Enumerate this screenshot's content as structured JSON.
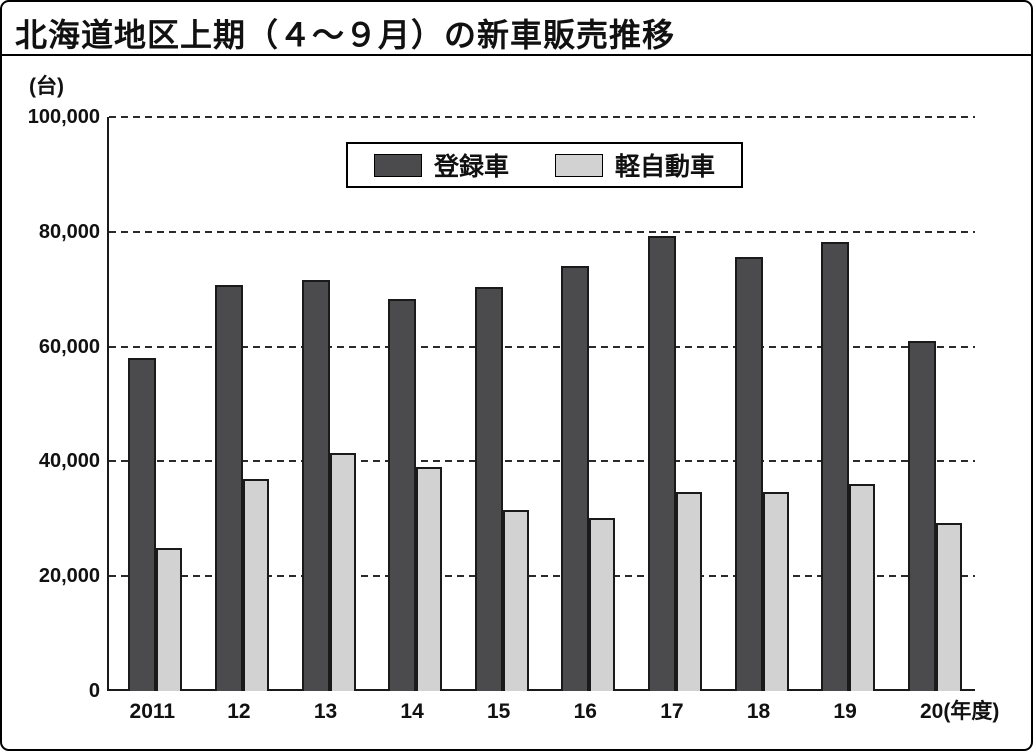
{
  "title": "北海道地区上期（４～９月）の新車販売推移",
  "unit_label": "(台)",
  "colors": {
    "registered_bar": "#4b4b4d",
    "kei_bar": "#d2d2d3",
    "bar_border": "#1a1a1a",
    "axis": "#1a1a1a",
    "background": "#ffffff"
  },
  "chart_data": {
    "type": "bar",
    "title": "北海道地区上期（４～９月）の新車販売推移",
    "ylabel": "(台)",
    "xlabel": "(年度)",
    "ylim": [
      0,
      100000
    ],
    "grid": "horizontal dashed",
    "legend_position": "top-center-inside",
    "categories": [
      "2011",
      "12",
      "13",
      "14",
      "15",
      "16",
      "17",
      "18",
      "19",
      "20"
    ],
    "x_axis_suffix": "(年度)",
    "y_ticks": [
      {
        "value": 100000,
        "label": "100,000"
      },
      {
        "value": 80000,
        "label": "80,000"
      },
      {
        "value": 60000,
        "label": "60,000"
      },
      {
        "value": 40000,
        "label": "40,000"
      },
      {
        "value": 20000,
        "label": "20,000"
      },
      {
        "value": 0,
        "label": "0"
      }
    ],
    "series": [
      {
        "name": "登録車",
        "color": "#4b4b4d",
        "values": [
          58000,
          70700,
          71600,
          68300,
          70400,
          74000,
          79300,
          75600,
          78300,
          61000
        ]
      },
      {
        "name": "軽自動車",
        "color": "#d2d2d3",
        "values": [
          25000,
          36900,
          41500,
          39000,
          31500,
          30100,
          34700,
          34700,
          36100,
          29300
        ]
      }
    ]
  }
}
